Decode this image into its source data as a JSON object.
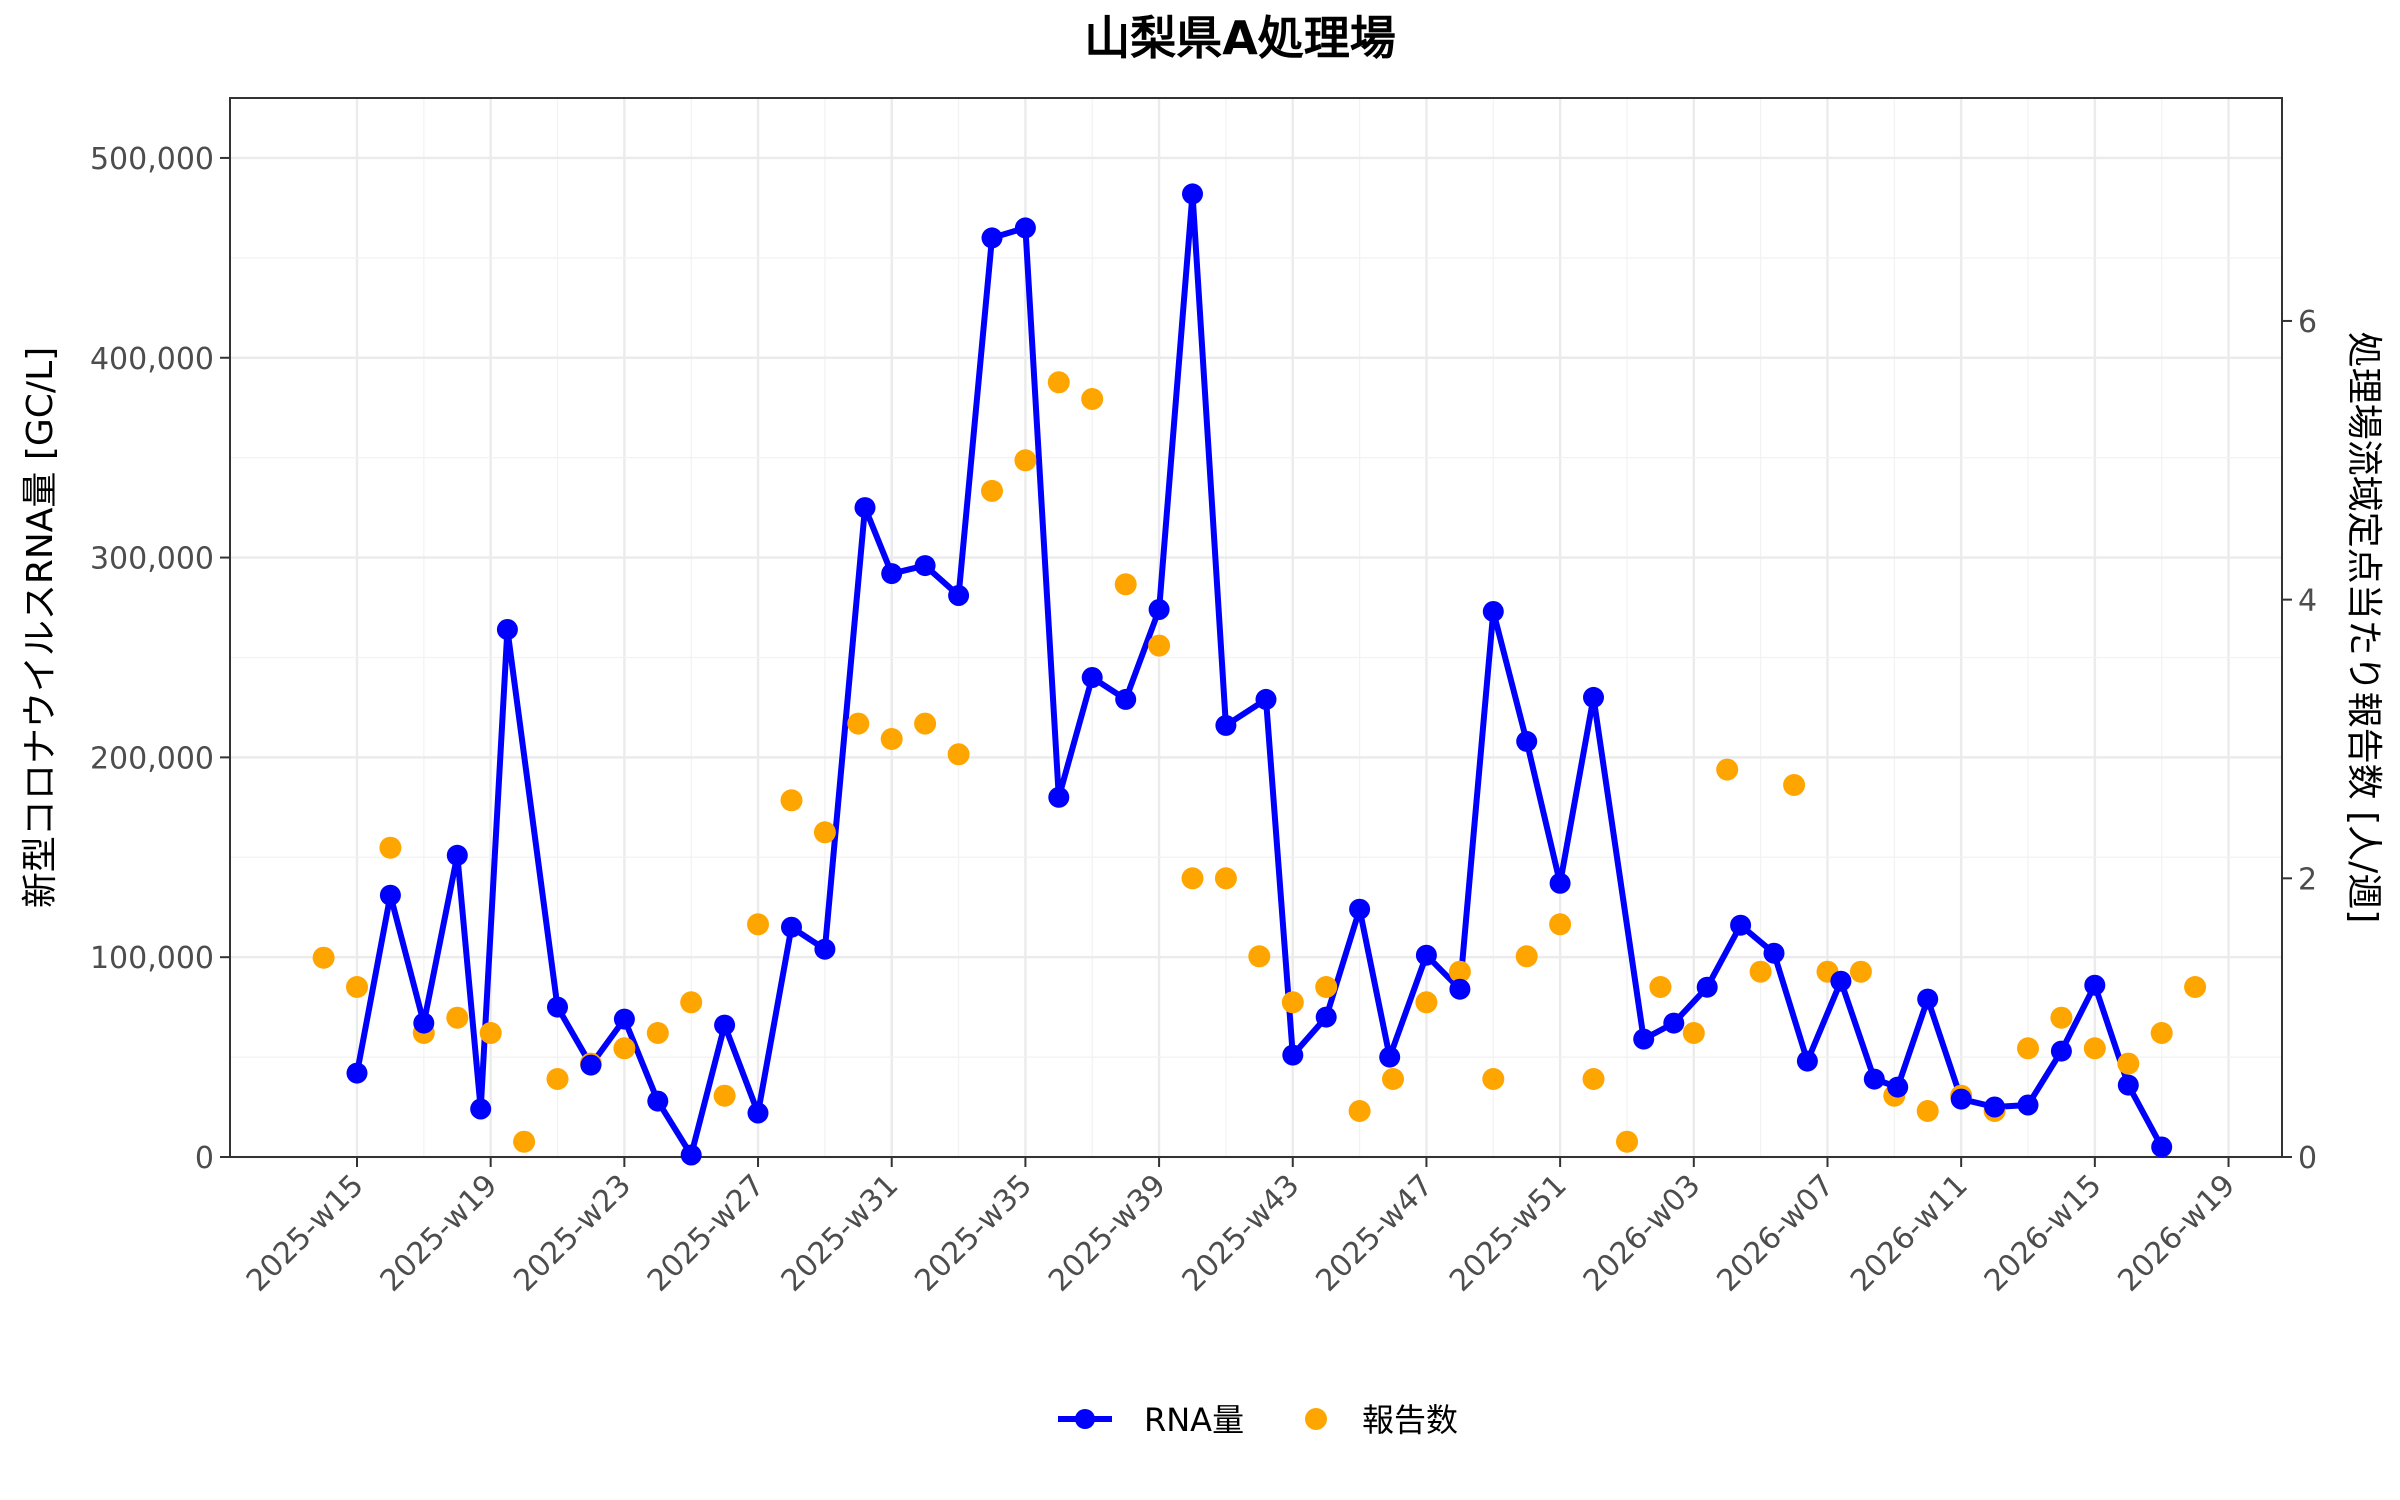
{
  "chart_data": {
    "type": "line",
    "title": "山梨県A処理場",
    "ylabel": "新型コロナウイルスRNA量 [GC/L]",
    "y2label": "処理場流域定点当たり報告数 [人/週]",
    "ylim": [
      0,
      530000
    ],
    "y2lim": [
      0,
      7.6
    ],
    "yticks": [
      {
        "value": 0,
        "label": "0"
      },
      {
        "value": 100000,
        "label": "100,000"
      },
      {
        "value": 200000,
        "label": "200,000"
      },
      {
        "value": 300000,
        "label": "300,000"
      },
      {
        "value": 400000,
        "label": "400,000"
      },
      {
        "value": 500000,
        "label": "500,000"
      }
    ],
    "y2ticks": [
      {
        "value": 0,
        "label": "0"
      },
      {
        "value": 2,
        "label": "2"
      },
      {
        "value": 4,
        "label": "4"
      },
      {
        "value": 6,
        "label": "6"
      }
    ],
    "x_tick_positions": [
      15,
      19,
      23,
      27,
      31,
      35,
      39,
      43,
      47,
      51,
      55,
      59,
      63,
      67,
      71
    ],
    "xticks": [
      "2025-w15",
      "2025-w19",
      "2025-w23",
      "2025-w27",
      "2025-w31",
      "2025-w35",
      "2025-w39",
      "2025-w43",
      "2025-w47",
      "2025-w51",
      "2026-w03",
      "2026-w07",
      "2026-w11",
      "2026-w15",
      "2026-w19"
    ],
    "xlim": [
      11.2,
      72.6
    ],
    "grid": true,
    "legend_position": "bottom",
    "colors": {
      "rna": "#0000ff",
      "reports": "#ffa500"
    },
    "series": [
      {
        "name": "RNA量",
        "type": "line",
        "axis": "left",
        "points": [
          [
            15,
            42000
          ],
          [
            16,
            131000
          ],
          [
            17,
            67000
          ],
          [
            18,
            151000
          ],
          [
            18.7,
            24000
          ],
          [
            19.5,
            264000
          ],
          [
            21,
            75000
          ],
          [
            22,
            46000
          ],
          [
            23,
            69000
          ],
          [
            24,
            28000
          ],
          [
            25,
            1000
          ],
          [
            26,
            66000
          ],
          [
            27,
            22000
          ],
          [
            28,
            115000
          ],
          [
            29,
            104000
          ],
          [
            30.2,
            325000
          ],
          [
            31,
            292000
          ],
          [
            32,
            296000
          ],
          [
            33,
            281000
          ],
          [
            34,
            460000
          ],
          [
            35,
            465000
          ],
          [
            36,
            180000
          ],
          [
            37,
            240000
          ],
          [
            38,
            229000
          ],
          [
            39,
            274000
          ],
          [
            40,
            482000
          ],
          [
            41,
            216000
          ],
          [
            42.2,
            229000
          ],
          [
            43,
            51000
          ],
          [
            44,
            70000
          ],
          [
            45,
            124000
          ],
          [
            45.9,
            50000
          ],
          [
            47,
            101000
          ],
          [
            48,
            84000
          ],
          [
            49,
            273000
          ],
          [
            50,
            208000
          ],
          [
            51,
            137000
          ],
          [
            52,
            230000
          ],
          [
            53.5,
            59000
          ],
          [
            54.4,
            67000
          ],
          [
            55.4,
            85000
          ],
          [
            56.4,
            116000
          ],
          [
            57.4,
            102000
          ],
          [
            58.4,
            48000
          ],
          [
            59.4,
            88000
          ],
          [
            60.4,
            39000
          ],
          [
            61.1,
            35000
          ],
          [
            62,
            79000
          ],
          [
            63,
            29000
          ],
          [
            64,
            25000
          ],
          [
            65,
            26000
          ],
          [
            66,
            53000
          ],
          [
            67,
            86000
          ],
          [
            68,
            36000
          ],
          [
            69,
            5000
          ]
        ]
      },
      {
        "name": "報告数",
        "type": "scatter",
        "axis": "right",
        "points": [
          [
            14,
            1.43
          ],
          [
            15,
            1.22
          ],
          [
            16,
            2.22
          ],
          [
            17,
            0.89
          ],
          [
            18,
            1.0
          ],
          [
            19,
            0.89
          ],
          [
            20,
            0.11
          ],
          [
            21,
            0.56
          ],
          [
            22,
            0.67
          ],
          [
            23,
            0.78
          ],
          [
            24,
            0.89
          ],
          [
            25,
            1.11
          ],
          [
            26,
            0.44
          ],
          [
            27,
            1.67
          ],
          [
            28,
            2.56
          ],
          [
            29,
            2.33
          ],
          [
            30,
            3.11
          ],
          [
            31,
            3.0
          ],
          [
            32,
            3.11
          ],
          [
            33,
            2.89
          ],
          [
            34,
            4.78
          ],
          [
            35,
            5.0
          ],
          [
            36,
            5.56
          ],
          [
            37,
            5.44
          ],
          [
            38,
            4.11
          ],
          [
            39,
            3.67
          ],
          [
            40,
            2.0
          ],
          [
            41,
            2.0
          ],
          [
            42,
            1.44
          ],
          [
            43,
            1.11
          ],
          [
            44,
            1.22
          ],
          [
            45,
            0.33
          ],
          [
            46,
            0.56
          ],
          [
            47,
            1.11
          ],
          [
            48,
            1.33
          ],
          [
            49,
            0.56
          ],
          [
            50,
            1.44
          ],
          [
            51,
            1.67
          ],
          [
            52,
            0.56
          ],
          [
            53,
            0.11
          ],
          [
            54,
            1.22
          ],
          [
            55,
            0.89
          ],
          [
            56,
            2.78
          ],
          [
            57,
            1.33
          ],
          [
            58,
            2.67
          ],
          [
            59,
            1.33
          ],
          [
            60,
            1.33
          ],
          [
            61,
            0.44
          ],
          [
            62,
            0.33
          ],
          [
            63,
            0.44
          ],
          [
            64,
            0.33
          ],
          [
            65,
            0.78
          ],
          [
            66,
            1.0
          ],
          [
            67,
            0.78
          ],
          [
            68,
            0.67
          ],
          [
            69,
            0.89
          ],
          [
            70,
            1.22
          ]
        ]
      }
    ]
  }
}
